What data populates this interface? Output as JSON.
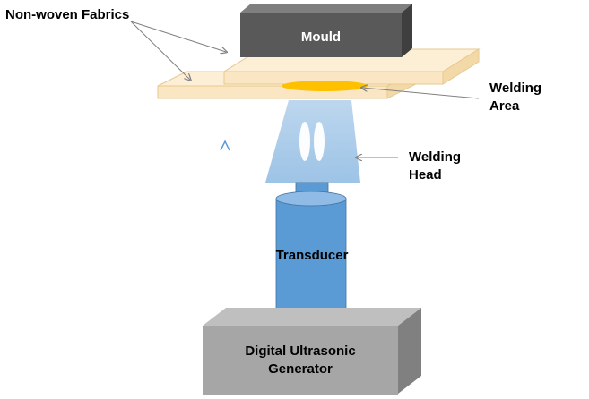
{
  "labels": {
    "non_woven_fabrics": "Non-woven Fabrics",
    "mould": "Mould",
    "welding_area_line1": "Welding",
    "welding_area_line2": "Area",
    "welding_head_line1": "Welding",
    "welding_head_line2": "Head",
    "transducer": "Transducer",
    "generator_line1": "Digital Ultrasonic",
    "generator_line2": "Generator"
  },
  "colors": {
    "fabric_top": "#fcefd6",
    "fabric_front": "#fae6c3",
    "fabric_edge": "#e8c98f",
    "mould_front": "#595959",
    "mould_top": "#7f7f7f",
    "mould_side": "#3f3f3f",
    "weld_area": "#ffc000",
    "welding_head": "#9dc3e6",
    "transducer": "#5b9bd5",
    "transducer_top": "#8fbbe6",
    "generator_front": "#a6a6a6",
    "generator_top": "#bfbfbf",
    "generator_side": "#808080",
    "arrow_up_start": "#2e8b57",
    "arrow_up_end": "#5b9bd5",
    "pointer": "#808080"
  }
}
